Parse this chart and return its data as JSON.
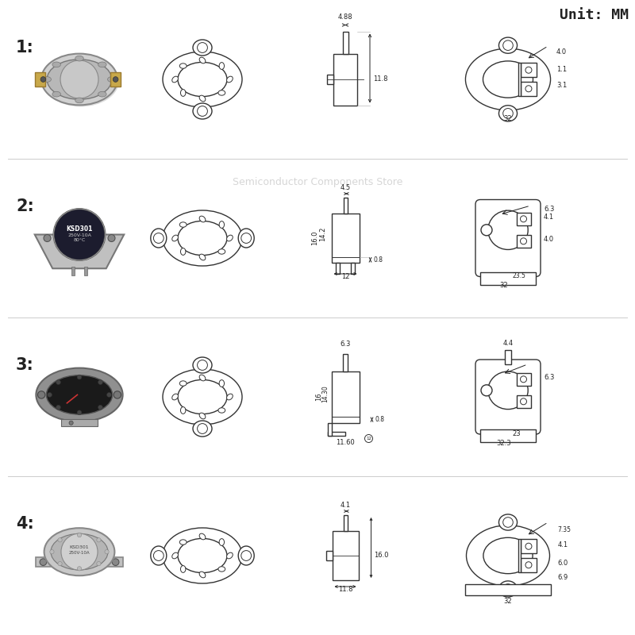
{
  "title": "Unit: MM",
  "background_color": "#ffffff",
  "rows": [
    {
      "label": "1:",
      "side_dims": {
        "pin_w": "4.88",
        "body_h": "11.8"
      },
      "front_dims": {
        "top": "4.0",
        "d1": "1.1",
        "d2": "3.1",
        "w": "32"
      }
    },
    {
      "label": "2:",
      "side_dims": {
        "pin_w": "4.5",
        "body_h": "16.0",
        "inner_h": "14.2",
        "base_w": "12",
        "tab": "0.8"
      },
      "front_dims": {
        "top": "6.3",
        "d1": "4.1",
        "d2": "4.0",
        "w1": "23.5",
        "w2": "32"
      }
    },
    {
      "label": "3:",
      "side_dims": {
        "pin_w": "6.3",
        "body_h": "16",
        "inner_h": "14.30",
        "base_w": "11.60",
        "tab": "0.8"
      },
      "front_dims": {
        "top": "4.4",
        "d1": "6.3",
        "w1": "23",
        "w2": "32.3"
      }
    },
    {
      "label": "4:",
      "side_dims": {
        "pin_w": "4.1",
        "body_h": "16.0",
        "base_w": "11.8"
      },
      "front_dims": {
        "top": "7.35",
        "d1": "4.1",
        "d2": "6.0",
        "d3": "6.9",
        "w": "32"
      }
    }
  ],
  "watermark": "Semiconductor Components Store",
  "lc": "#333333",
  "dc": "#222222"
}
